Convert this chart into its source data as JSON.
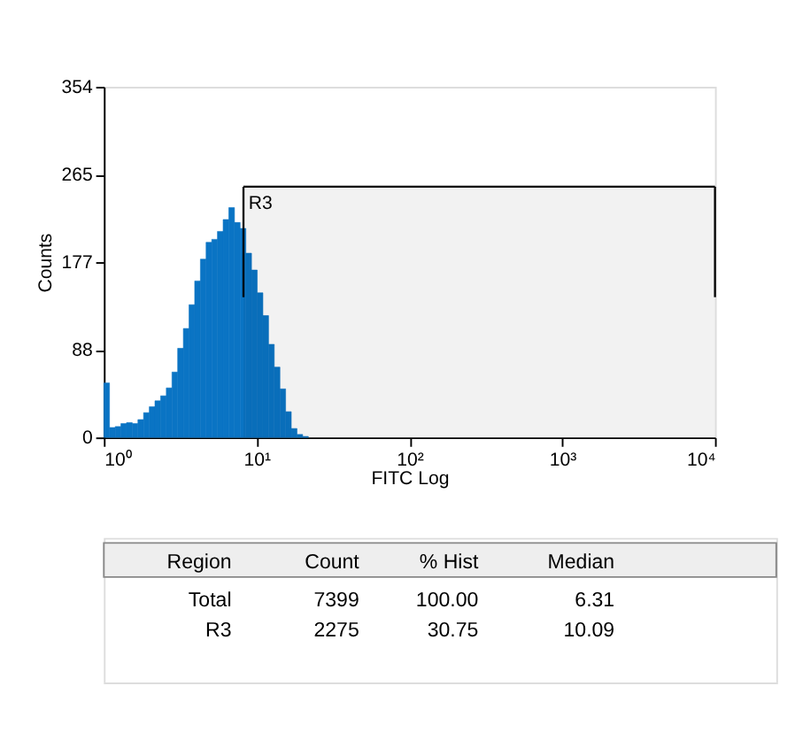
{
  "chart_data": {
    "type": "histogram",
    "xlabel": "FITC Log",
    "ylabel": "Counts",
    "bins": [
      1,
      1.089,
      1.187,
      1.293,
      1.408,
      1.534,
      1.671,
      1.82,
      1.983,
      2.16,
      2.353,
      2.563,
      2.793,
      3.042,
      3.314,
      3.611,
      3.933,
      4.285,
      4.668,
      5.085,
      5.54,
      6.035,
      6.574,
      7.161,
      7.801,
      8.499,
      9.259,
      10.09,
      10.99,
      11.97,
      13.04,
      14.21,
      15.48,
      16.86,
      18.37,
      20.01,
      21.8
    ],
    "values": [
      55,
      10,
      11,
      14,
      15,
      14,
      18,
      25,
      31,
      37,
      42,
      50,
      66,
      90,
      110,
      134,
      158,
      180,
      197,
      200,
      208,
      220,
      232,
      217,
      211,
      186,
      169,
      146,
      123,
      94,
      71,
      49,
      26,
      9,
      3,
      1
    ],
    "color": "#0a74c4",
    "log": "x",
    "grid": false,
    "xlim": [
      1,
      10000
    ],
    "xticks": [
      {
        "value": 1,
        "label": "10⁰"
      },
      {
        "value": 10,
        "label": "10¹"
      },
      {
        "value": 100,
        "label": "10²"
      },
      {
        "value": 1000,
        "label": "10³"
      },
      {
        "value": 10000,
        "label": "10⁴"
      }
    ],
    "ylim": [
      0,
      354
    ],
    "yticks": [
      0,
      88,
      177,
      265,
      354
    ],
    "bands": [
      {
        "axis": "x",
        "from": 8.2,
        "to": 10000,
        "label": "R3",
        "color": "#000000"
      }
    ],
    "annotations": [
      "Region",
      "Count",
      "% Hist",
      "Median",
      "Total",
      "7399",
      "100.00",
      "6.31",
      "R3",
      "2275",
      "30.75",
      "10.09"
    ]
  }
}
